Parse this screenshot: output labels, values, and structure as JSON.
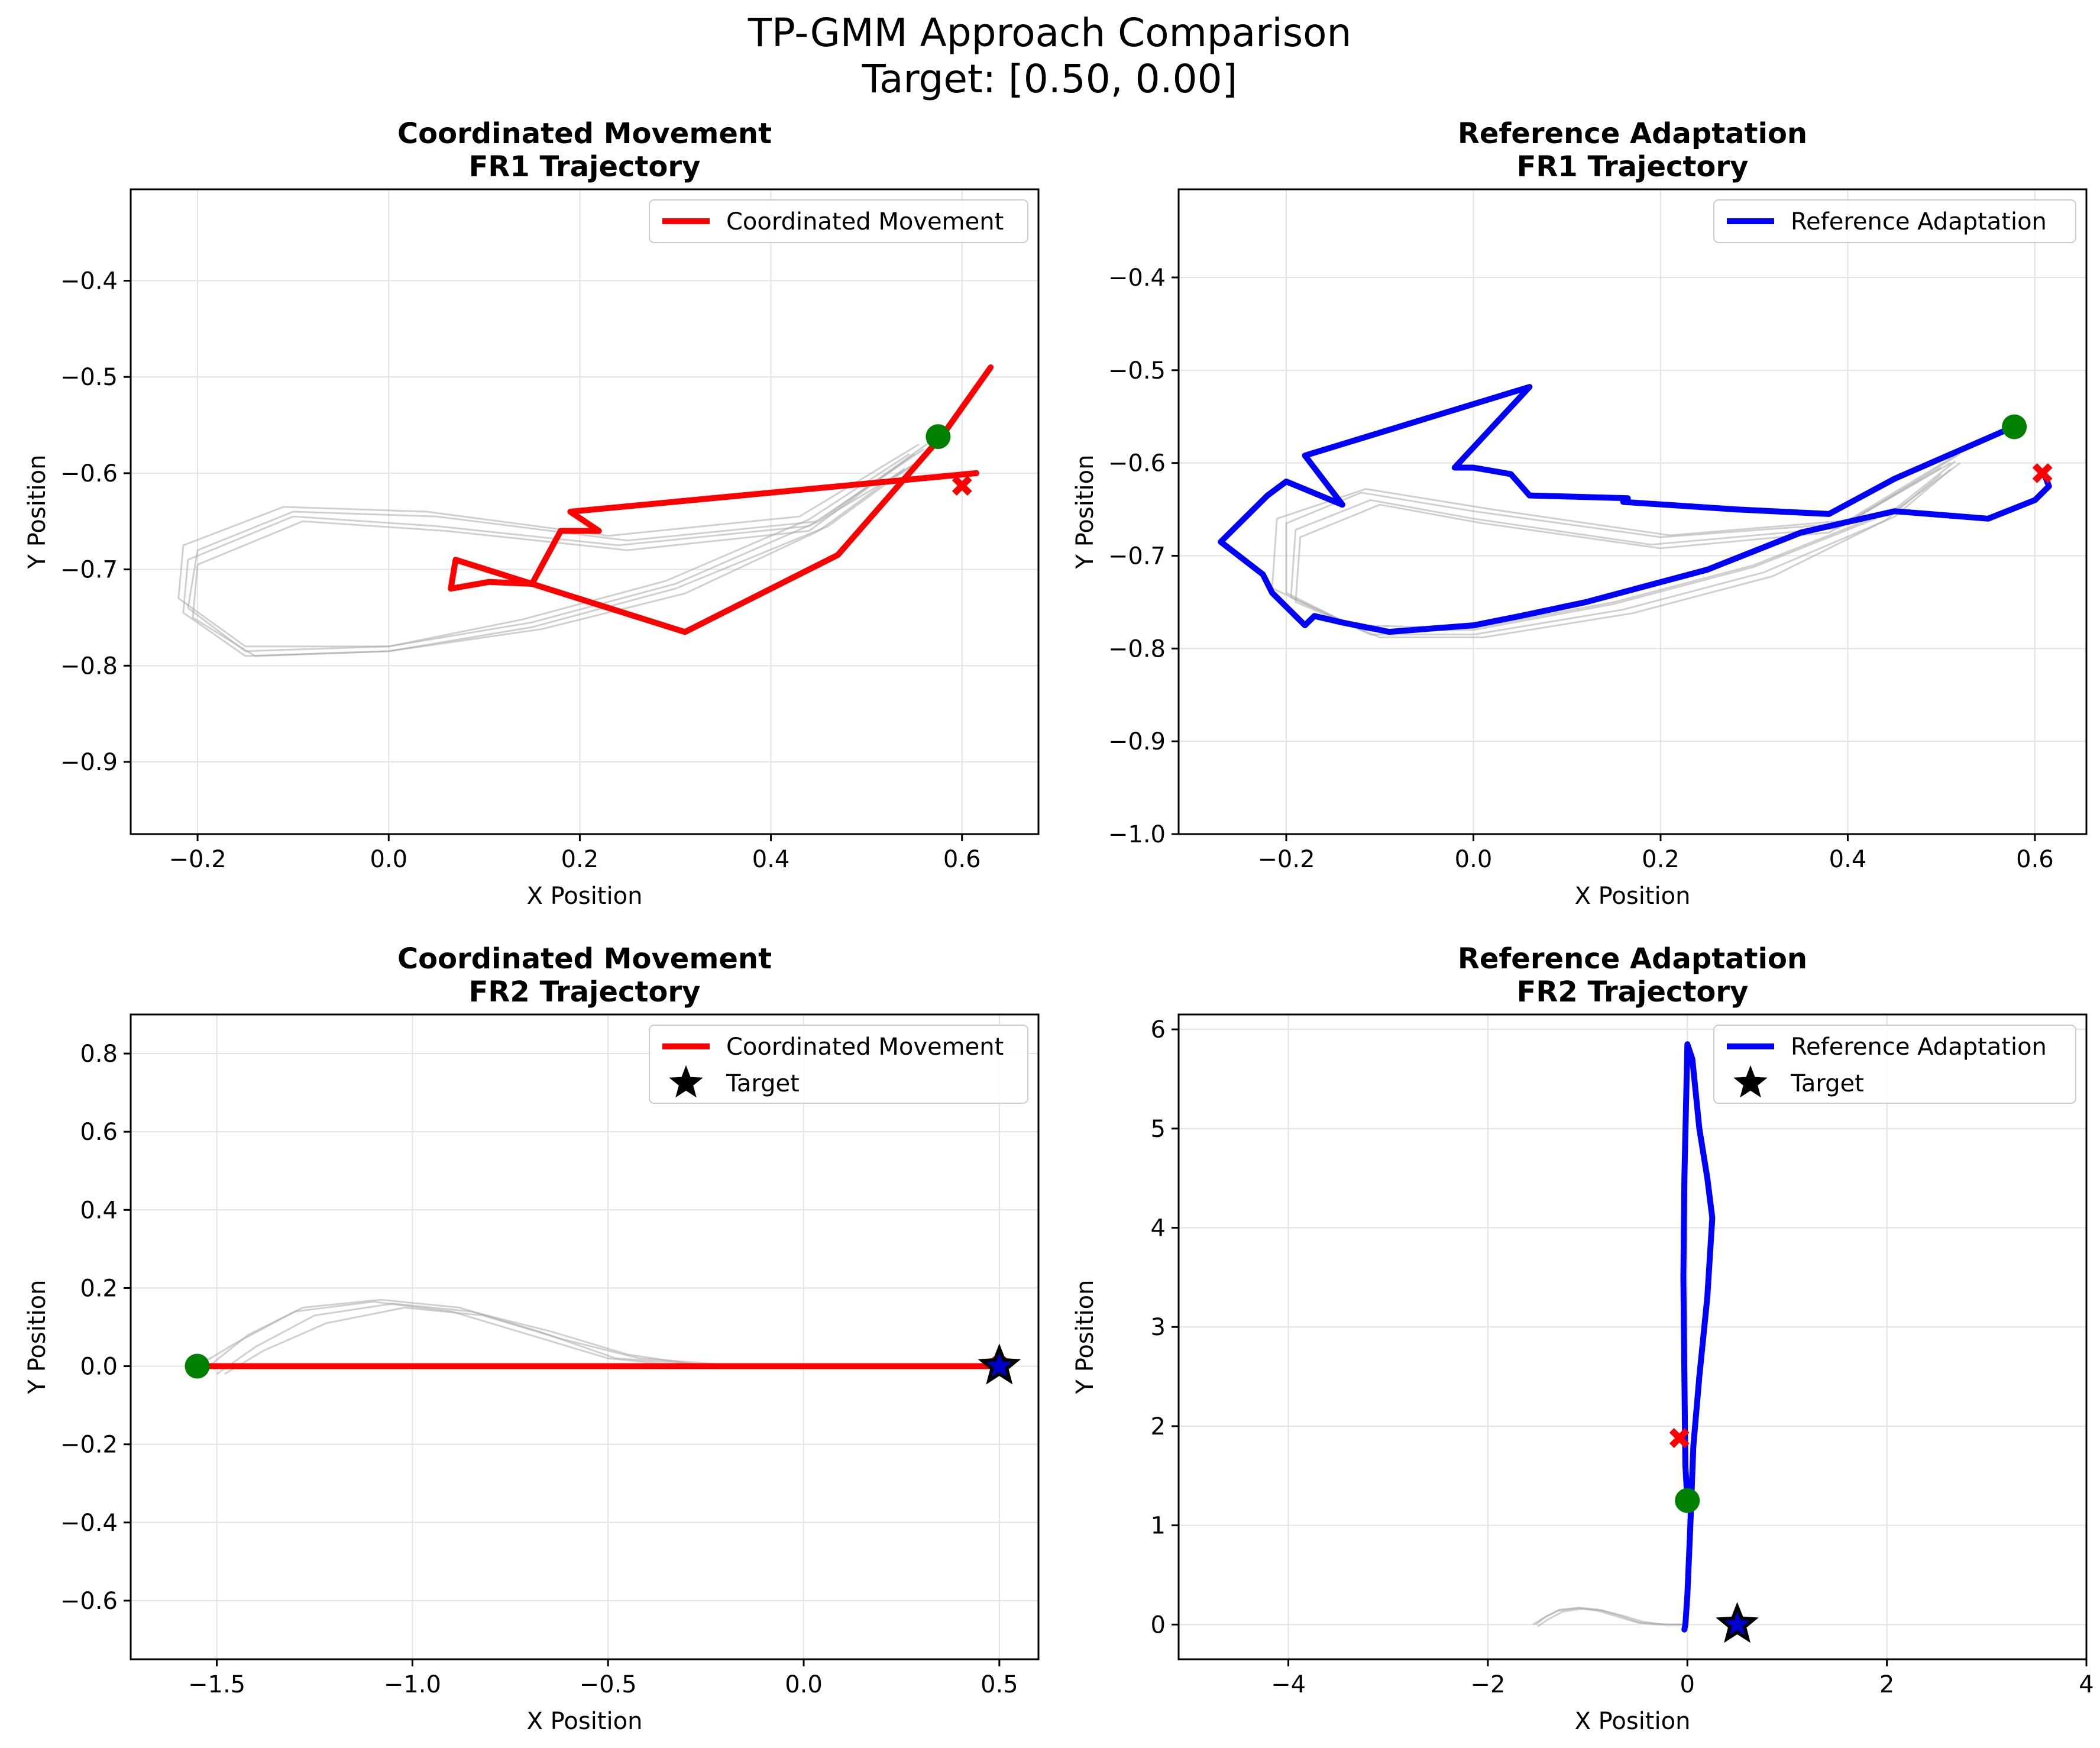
{
  "figure": {
    "suptitle_line1": "TP-GMM Approach Comparison",
    "suptitle_line2": "Target: [0.50, 0.00]"
  },
  "colors": {
    "coordinated": "#ff0000",
    "reference": "#0000ff",
    "demos": "#aaaaaa",
    "start_marker": "#008000",
    "end_marker": "#ff0000",
    "target_fill": "#0000cc",
    "target_edge": "#000000"
  },
  "chart_data": [
    {
      "type": "line",
      "title_line1": "Coordinated Movement",
      "title_line2": "FR1 Trajectory",
      "xlabel": "X Position",
      "ylabel": "Y Position",
      "xlim": [
        -0.27,
        0.68
      ],
      "ylim": [
        -0.975,
        -0.305
      ],
      "xticks": [
        -0.2,
        0.0,
        0.2,
        0.4,
        0.6
      ],
      "xtick_labels": [
        "−0.2",
        "0.0",
        "0.2",
        "0.4",
        "0.6"
      ],
      "yticks": [
        -0.9,
        -0.8,
        -0.7,
        -0.6,
        -0.5,
        -0.4
      ],
      "ytick_labels": [
        "−0.9",
        "−0.8",
        "−0.7",
        "−0.6",
        "−0.5",
        "−0.4"
      ],
      "grid": true,
      "legend_position": "top-right",
      "series": [
        {
          "name": "Coordinated Movement",
          "color": "#ff0000",
          "x": [
            0.615,
            0.19,
            0.22,
            0.18,
            0.15,
            0.105,
            0.065,
            0.07,
            0.15,
            0.31,
            0.47,
            0.58,
            0.63
          ],
          "y": [
            -0.6,
            -0.64,
            -0.66,
            -0.66,
            -0.715,
            -0.713,
            -0.72,
            -0.69,
            -0.715,
            -0.765,
            -0.685,
            -0.56,
            -0.49
          ]
        }
      ],
      "demos": [
        {
          "x": [
            0.57,
            0.45,
            0.25,
            0.05,
            -0.1,
            -0.2,
            -0.21,
            -0.15,
            0.0,
            0.15,
            0.3,
            0.45,
            0.56
          ],
          "y": [
            -0.565,
            -0.65,
            -0.67,
            -0.645,
            -0.64,
            -0.68,
            -0.74,
            -0.785,
            -0.78,
            -0.755,
            -0.715,
            -0.65,
            -0.585
          ]
        },
        {
          "x": [
            0.56,
            0.44,
            0.24,
            0.05,
            -0.1,
            -0.21,
            -0.215,
            -0.15,
            0.0,
            0.15,
            0.3,
            0.46,
            0.55
          ],
          "y": [
            -0.575,
            -0.655,
            -0.675,
            -0.655,
            -0.645,
            -0.69,
            -0.745,
            -0.79,
            -0.785,
            -0.76,
            -0.72,
            -0.655,
            -0.59
          ]
        },
        {
          "x": [
            0.55,
            0.44,
            0.25,
            0.06,
            -0.09,
            -0.2,
            -0.205,
            -0.14,
            0.0,
            0.16,
            0.31,
            0.45,
            0.54
          ],
          "y": [
            -0.58,
            -0.66,
            -0.68,
            -0.66,
            -0.65,
            -0.695,
            -0.75,
            -0.79,
            -0.785,
            -0.762,
            -0.725,
            -0.66,
            -0.595
          ]
        },
        {
          "x": [
            0.555,
            0.43,
            0.23,
            0.04,
            -0.11,
            -0.215,
            -0.22,
            -0.15,
            0.0,
            0.14,
            0.29,
            0.44,
            0.545
          ],
          "y": [
            -0.57,
            -0.645,
            -0.665,
            -0.64,
            -0.635,
            -0.675,
            -0.73,
            -0.78,
            -0.78,
            -0.752,
            -0.712,
            -0.648,
            -0.58
          ]
        }
      ],
      "start": {
        "x": 0.575,
        "y": -0.562
      },
      "end": {
        "x": 0.6,
        "y": -0.613
      },
      "target": null
    },
    {
      "type": "line",
      "title_line1": "Reference Adaptation",
      "title_line2": "FR1 Trajectory",
      "xlabel": "X Position",
      "ylabel": "Y Position",
      "xlim": [
        -0.315,
        0.655
      ],
      "ylim": [
        -1.0,
        -0.305
      ],
      "xticks": [
        -0.2,
        0.0,
        0.2,
        0.4,
        0.6
      ],
      "xtick_labels": [
        "−0.2",
        "0.0",
        "0.2",
        "0.4",
        "0.6"
      ],
      "yticks": [
        -1.0,
        -0.9,
        -0.8,
        -0.7,
        -0.6,
        -0.5,
        -0.4
      ],
      "ytick_labels": [
        "−1.0",
        "−0.9",
        "−0.8",
        "−0.7",
        "−0.6",
        "−0.5",
        "−0.4"
      ],
      "grid": true,
      "legend_position": "top-right",
      "series": [
        {
          "name": "Reference Adaptation",
          "color": "#0000ff",
          "x": [
            0.575,
            0.5,
            0.45,
            0.38,
            0.28,
            0.16,
            0.165,
            0.06,
            0.04,
            0.0,
            -0.02,
            0.06,
            -0.18,
            -0.14,
            -0.2,
            -0.22,
            -0.27,
            -0.225,
            -0.215,
            -0.18,
            -0.17,
            -0.14,
            -0.09,
            0.0,
            0.05,
            0.12,
            0.25,
            0.35,
            0.45,
            0.55,
            0.6,
            0.615,
            0.61
          ],
          "y": [
            -0.562,
            -0.595,
            -0.617,
            -0.655,
            -0.65,
            -0.642,
            -0.638,
            -0.635,
            -0.612,
            -0.605,
            -0.605,
            -0.518,
            -0.592,
            -0.645,
            -0.62,
            -0.635,
            -0.685,
            -0.72,
            -0.74,
            -0.775,
            -0.765,
            -0.772,
            -0.782,
            -0.775,
            -0.765,
            -0.75,
            -0.715,
            -0.675,
            -0.652,
            -0.66,
            -0.64,
            -0.625,
            -0.612
          ]
        }
      ],
      "demos": [
        {
          "x": [
            0.52,
            0.4,
            0.2,
            0.0,
            -0.12,
            -0.2,
            -0.2,
            -0.12,
            0.0,
            0.15,
            0.3,
            0.45,
            0.52
          ],
          "y": [
            -0.59,
            -0.665,
            -0.68,
            -0.652,
            -0.632,
            -0.665,
            -0.74,
            -0.78,
            -0.78,
            -0.752,
            -0.712,
            -0.652,
            -0.6
          ]
        },
        {
          "x": [
            0.51,
            0.39,
            0.19,
            0.0,
            -0.11,
            -0.19,
            -0.195,
            -0.11,
            0.0,
            0.16,
            0.31,
            0.45,
            0.51
          ],
          "y": [
            -0.6,
            -0.67,
            -0.688,
            -0.66,
            -0.64,
            -0.672,
            -0.745,
            -0.785,
            -0.785,
            -0.758,
            -0.718,
            -0.658,
            -0.607
          ]
        },
        {
          "x": [
            0.5,
            0.38,
            0.2,
            0.01,
            -0.1,
            -0.185,
            -0.19,
            -0.1,
            0.01,
            0.17,
            0.32,
            0.44,
            0.5
          ],
          "y": [
            -0.605,
            -0.675,
            -0.692,
            -0.665,
            -0.645,
            -0.68,
            -0.75,
            -0.788,
            -0.788,
            -0.762,
            -0.722,
            -0.662,
            -0.612
          ]
        },
        {
          "x": [
            0.515,
            0.4,
            0.21,
            0.02,
            -0.115,
            -0.21,
            -0.215,
            -0.13,
            0.0,
            0.15,
            0.3,
            0.45,
            0.515
          ],
          "y": [
            -0.592,
            -0.662,
            -0.678,
            -0.65,
            -0.628,
            -0.66,
            -0.735,
            -0.775,
            -0.778,
            -0.75,
            -0.71,
            -0.65,
            -0.598
          ]
        }
      ],
      "start": {
        "x": 0.578,
        "y": -0.561
      },
      "end": {
        "x": 0.608,
        "y": -0.611
      },
      "target": null
    },
    {
      "type": "line",
      "title_line1": "Coordinated Movement",
      "title_line2": "FR2 Trajectory",
      "xlabel": "X Position",
      "ylabel": "Y Position",
      "xlim": [
        -1.72,
        0.6
      ],
      "ylim": [
        -0.75,
        0.9
      ],
      "xticks": [
        -1.5,
        -1.0,
        -0.5,
        0.0,
        0.5
      ],
      "xtick_labels": [
        "−1.5",
        "−1.0",
        "−0.5",
        "0.0",
        "0.5"
      ],
      "yticks": [
        -0.6,
        -0.4,
        -0.2,
        0.0,
        0.2,
        0.4,
        0.6,
        0.8
      ],
      "ytick_labels": [
        "−0.6",
        "−0.4",
        "−0.2",
        "0.0",
        "0.2",
        "0.4",
        "0.6",
        "0.8"
      ],
      "grid": true,
      "legend_position": "top-right",
      "target_label": "Target",
      "series": [
        {
          "name": "Coordinated Movement",
          "color": "#ff0000",
          "x": [
            -1.55,
            -1.0,
            -0.5,
            0.0,
            0.5
          ],
          "y": [
            0.0,
            0.0,
            0.0,
            0.0,
            0.0
          ]
        }
      ],
      "demos": [
        {
          "x": [
            -1.55,
            -1.45,
            -1.3,
            -1.1,
            -0.9,
            -0.7,
            -0.5,
            -0.3
          ],
          "y": [
            0.0,
            0.06,
            0.14,
            0.165,
            0.14,
            0.08,
            0.02,
            0.0
          ]
        },
        {
          "x": [
            -1.5,
            -1.4,
            -1.25,
            -1.05,
            -0.85,
            -0.65,
            -0.45,
            -0.25
          ],
          "y": [
            -0.02,
            0.05,
            0.13,
            0.16,
            0.14,
            0.09,
            0.03,
            0.0
          ]
        },
        {
          "x": [
            -1.52,
            -1.42,
            -1.28,
            -1.08,
            -0.88,
            -0.68,
            -0.48,
            -0.2
          ],
          "y": [
            0.0,
            0.08,
            0.15,
            0.17,
            0.15,
            0.09,
            0.02,
            0.0
          ]
        },
        {
          "x": [
            -1.48,
            -1.38,
            -1.22,
            -1.02,
            -0.82,
            -0.62,
            -0.42,
            -0.15
          ],
          "y": [
            -0.02,
            0.04,
            0.11,
            0.15,
            0.13,
            0.07,
            0.02,
            0.0
          ]
        }
      ],
      "start": {
        "x": -1.55,
        "y": 0.0
      },
      "end": {
        "x": 0.5,
        "y": 0.0
      },
      "target": {
        "x": 0.5,
        "y": 0.0
      }
    },
    {
      "type": "line",
      "title_line1": "Reference Adaptation",
      "title_line2": "FR2 Trajectory",
      "xlabel": "X Position",
      "ylabel": "Y Position",
      "xlim": [
        -5.1,
        4.0
      ],
      "ylim": [
        -0.35,
        6.15
      ],
      "xticks": [
        -4,
        -2,
        0,
        2,
        4
      ],
      "xtick_labels": [
        "−4",
        "−2",
        "0",
        "2",
        "4"
      ],
      "yticks": [
        0,
        1,
        2,
        3,
        4,
        5,
        6
      ],
      "ytick_labels": [
        "0",
        "1",
        "2",
        "3",
        "4",
        "5",
        "6"
      ],
      "grid": true,
      "legend_position": "top-right",
      "target_label": "Target",
      "series": [
        {
          "name": "Reference Adaptation",
          "color": "#0000ff",
          "x": [
            0.0,
            -0.02,
            -0.03,
            -0.04,
            -0.03,
            0.0,
            0.05,
            0.12,
            0.2,
            0.25,
            0.2,
            0.12,
            0.06,
            0.03,
            0.0,
            -0.02,
            -0.03
          ],
          "y": [
            1.25,
            1.6,
            2.5,
            3.5,
            4.5,
            5.85,
            5.7,
            5.0,
            4.5,
            4.1,
            3.3,
            2.5,
            1.8,
            1.0,
            0.3,
            0.0,
            -0.05
          ]
        }
      ],
      "demos": [
        {
          "x": [
            -1.55,
            -1.45,
            -1.3,
            -1.1,
            -0.9,
            -0.7,
            -0.5,
            -0.3,
            -0.05
          ],
          "y": [
            0.0,
            0.06,
            0.14,
            0.165,
            0.14,
            0.08,
            0.02,
            0.0,
            0.0
          ]
        },
        {
          "x": [
            -1.5,
            -1.4,
            -1.25,
            -1.05,
            -0.85,
            -0.65,
            -0.45,
            -0.25,
            0.0
          ],
          "y": [
            -0.02,
            0.05,
            0.13,
            0.16,
            0.14,
            0.09,
            0.03,
            0.0,
            0.0
          ]
        },
        {
          "x": [
            -1.52,
            -1.42,
            -1.28,
            -1.08,
            -0.88,
            -0.68,
            -0.48,
            -0.2,
            0.0
          ],
          "y": [
            0.0,
            0.08,
            0.15,
            0.17,
            0.15,
            0.09,
            0.02,
            0.0,
            0.0
          ]
        }
      ],
      "start": {
        "x": 0.0,
        "y": 1.25
      },
      "end": {
        "x": -0.08,
        "y": 1.88
      },
      "target": {
        "x": 0.5,
        "y": 0.0
      }
    }
  ]
}
